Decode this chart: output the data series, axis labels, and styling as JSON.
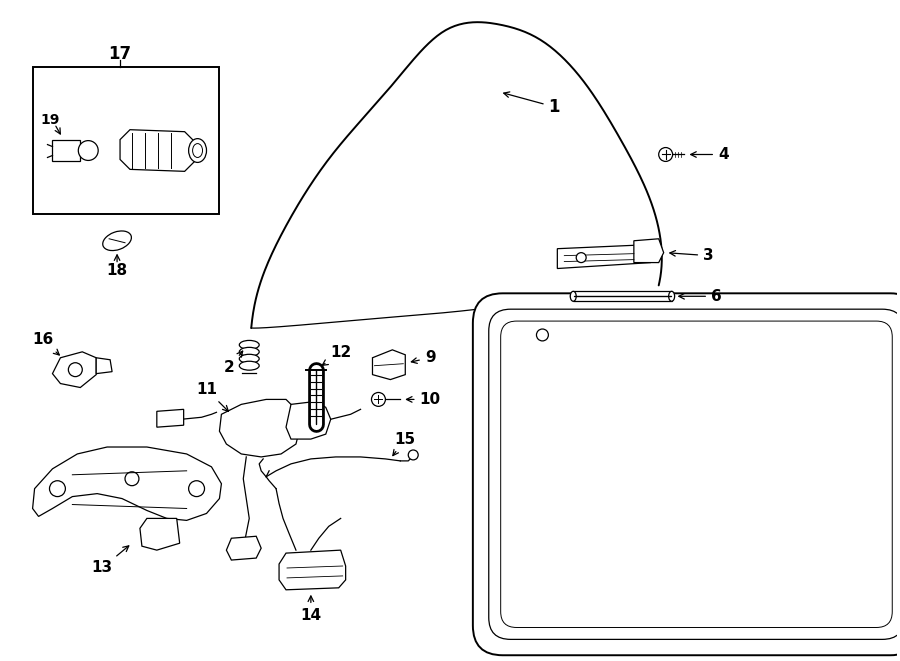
{
  "bg_color": "#ffffff",
  "line_color": "#000000",
  "fig_width": 9.0,
  "fig_height": 6.61,
  "lw_main": 1.4,
  "lw_thin": 0.9,
  "lw_bold": 2.0
}
